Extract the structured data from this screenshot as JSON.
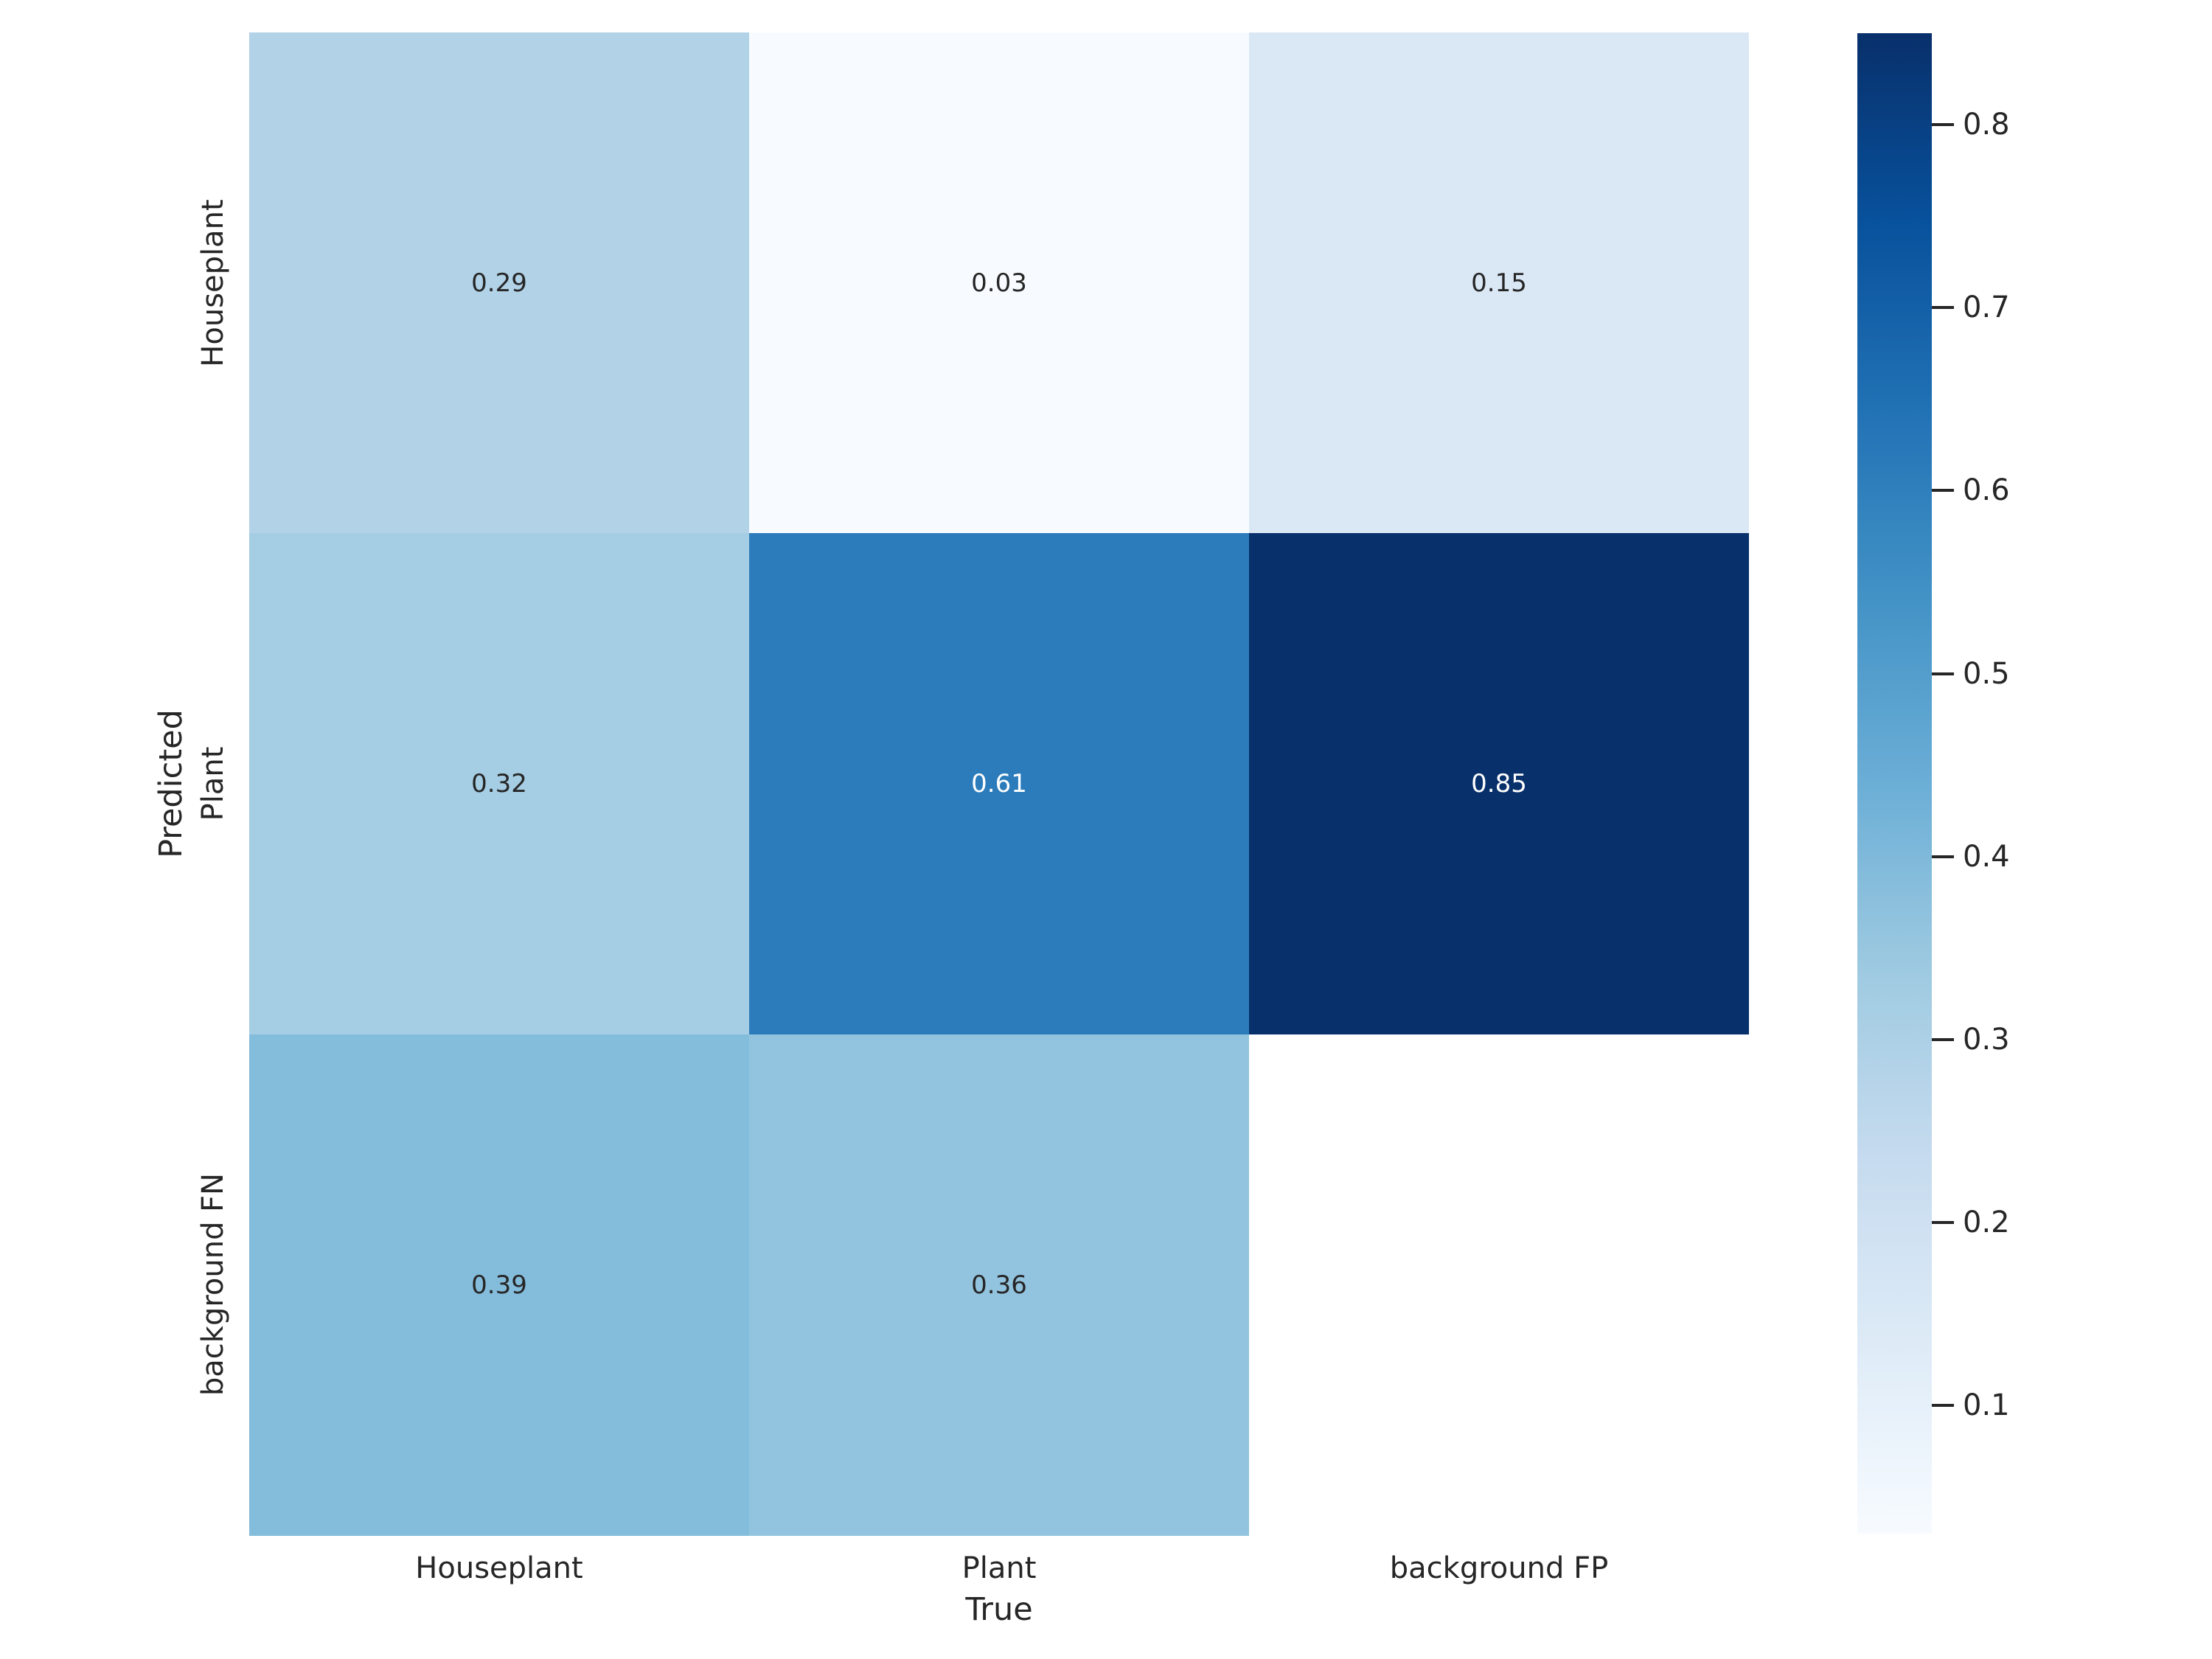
{
  "figure": {
    "background_color": "#ffffff",
    "text_color": "#262626"
  },
  "chart_data": {
    "type": "heatmap",
    "title": "",
    "xlabel": "True",
    "ylabel": "Predicted",
    "x_categories": [
      "Houseplant",
      "Plant",
      "background FP"
    ],
    "y_categories": [
      "Houseplant",
      "Plant",
      "background FN"
    ],
    "matrix": [
      [
        0.29,
        0.03,
        0.15
      ],
      [
        0.32,
        0.61,
        0.85
      ],
      [
        0.39,
        0.36,
        null
      ]
    ],
    "annotations": [
      [
        "0.29",
        "0.03",
        "0.15"
      ],
      [
        "0.32",
        "0.61",
        "0.85"
      ],
      [
        "0.39",
        "0.36",
        ""
      ]
    ],
    "vmin": 0.03,
    "vmax": 0.85,
    "colormap": {
      "name": "Blues",
      "anchors": [
        "#f7fbff",
        "#deebf7",
        "#c6dbef",
        "#9ecae1",
        "#6baed6",
        "#4292c6",
        "#2171b5",
        "#08519c",
        "#08306b"
      ]
    },
    "masked_cell_color": "#ffffff",
    "annotation_color_on_light": "#262626",
    "annotation_color_on_dark": "#ffffff",
    "colorbar": {
      "position": "right",
      "tick_labels": [
        "0.1",
        "0.2",
        "0.3",
        "0.4",
        "0.5",
        "0.6",
        "0.7",
        "0.8"
      ],
      "tick_values": [
        0.1,
        0.2,
        0.3,
        0.4,
        0.5,
        0.6,
        0.7,
        0.8
      ]
    },
    "grid": false,
    "legend": null
  }
}
